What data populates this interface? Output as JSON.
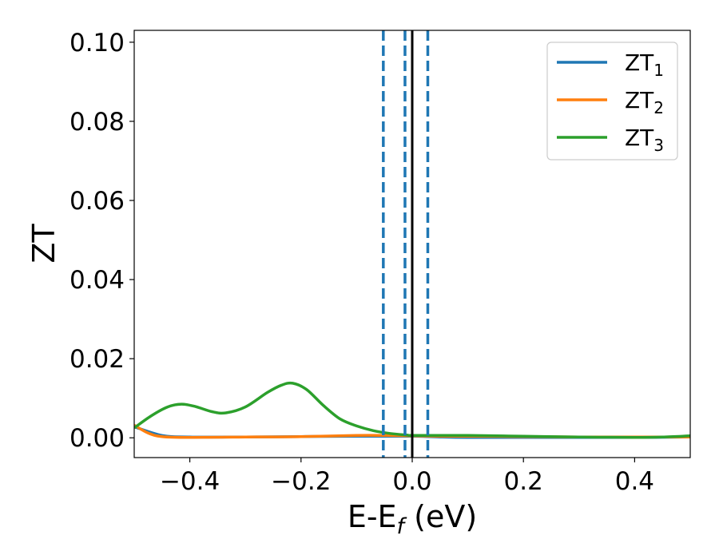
{
  "chart_data": {
    "type": "line",
    "xlabel": "E-E",
    "xlabel_sub": "f",
    "xlabel_unit": " (eV)",
    "ylabel": "ZT",
    "xlim": [
      -0.5,
      0.5
    ],
    "ylim": [
      -0.005,
      0.103
    ],
    "xticks": [
      -0.4,
      -0.2,
      0.0,
      0.2,
      0.4
    ],
    "xtick_labels": [
      "−0.4",
      "−0.2",
      "0.0",
      "0.2",
      "0.4"
    ],
    "yticks": [
      0.0,
      0.02,
      0.04,
      0.06,
      0.08,
      0.1
    ],
    "ytick_labels": [
      "0.00",
      "0.02",
      "0.04",
      "0.06",
      "0.08",
      "0.10"
    ],
    "grid": false,
    "legend": "top-right",
    "vlines": [
      {
        "x": -0.052,
        "style": "dashed",
        "color": "#1f77b4"
      },
      {
        "x": -0.013,
        "style": "dashed",
        "color": "#1f77b4"
      },
      {
        "x": 0.028,
        "style": "dashed",
        "color": "#1f77b4"
      },
      {
        "x": 0.0,
        "style": "solid",
        "color": "#000000"
      }
    ],
    "series": [
      {
        "name": "ZT",
        "sub": "1",
        "color": "#1f77b4",
        "x": [
          -0.5,
          -0.45,
          -0.4,
          -0.3,
          -0.2,
          -0.1,
          -0.05,
          0.0,
          0.05,
          0.1,
          0.2,
          0.3,
          0.4,
          0.5
        ],
        "y": [
          0.0028,
          0.0006,
          0.0002,
          0.0002,
          0.0003,
          0.0004,
          0.0004,
          0.0004,
          0.0002,
          0.0001,
          0.0001,
          0.0001,
          0.0001,
          0.0002
        ]
      },
      {
        "name": "ZT",
        "sub": "2",
        "color": "#ff7f0e",
        "x": [
          -0.5,
          -0.475,
          -0.45,
          -0.4,
          -0.3,
          -0.2,
          -0.1,
          -0.05,
          0.0,
          0.05,
          0.1,
          0.2,
          0.3,
          0.4,
          0.5
        ],
        "y": [
          0.0032,
          0.0012,
          0.0003,
          0.0001,
          0.0002,
          0.0003,
          0.0006,
          0.0006,
          0.0005,
          0.0004,
          0.0004,
          0.0003,
          0.0002,
          0.0002,
          0.0002
        ]
      },
      {
        "name": "ZT",
        "sub": "3",
        "color": "#2ca02c",
        "x": [
          -0.5,
          -0.47,
          -0.44,
          -0.415,
          -0.39,
          -0.36,
          -0.335,
          -0.3,
          -0.26,
          -0.235,
          -0.215,
          -0.19,
          -0.16,
          -0.13,
          -0.1,
          -0.07,
          -0.04,
          -0.01,
          0.0,
          0.05,
          0.1,
          0.2,
          0.3,
          0.4,
          0.45,
          0.5
        ],
        "y": [
          0.0025,
          0.0055,
          0.0078,
          0.0085,
          0.0079,
          0.0066,
          0.0063,
          0.0078,
          0.0115,
          0.0133,
          0.0138,
          0.0122,
          0.0082,
          0.0048,
          0.003,
          0.0018,
          0.0011,
          0.0007,
          0.0006,
          0.0006,
          0.0006,
          0.0004,
          0.0002,
          0.0001,
          0.0002,
          0.0005
        ]
      }
    ]
  }
}
